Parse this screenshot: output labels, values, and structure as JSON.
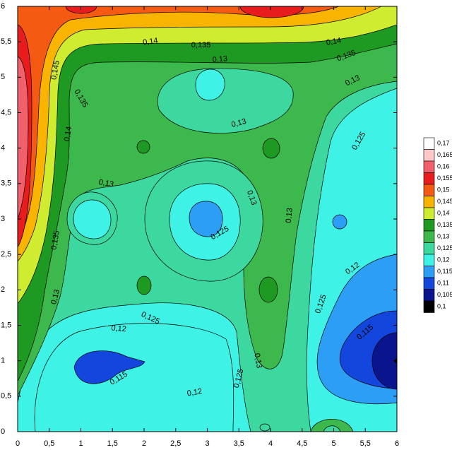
{
  "chart_data": {
    "type": "contour",
    "xlim": [
      0,
      6
    ],
    "ylim": [
      0,
      6
    ],
    "xticks": [
      0,
      {
        "value": 0.5,
        "label": "0,5"
      },
      1,
      {
        "value": 1.5,
        "label": "1,5"
      },
      2,
      {
        "value": 2.5,
        "label": "2,5"
      },
      3,
      {
        "value": 3.5,
        "label": "3,5"
      },
      4,
      {
        "value": 4.5,
        "label": "4,5"
      },
      5,
      {
        "value": 5.5,
        "label": "5,5"
      },
      6
    ],
    "yticks": [
      0,
      {
        "value": 0.5,
        "label": "0,5"
      },
      1,
      {
        "value": 1.5,
        "label": "1,5"
      },
      2,
      {
        "value": 2.5,
        "label": "2,5"
      },
      3,
      {
        "value": 3.5,
        "label": "3,5"
      },
      4,
      {
        "value": 4.5,
        "label": "4,5"
      },
      5,
      {
        "value": 5.5,
        "label": "5,5"
      },
      6
    ],
    "levels": [
      {
        "value": 0.17,
        "label": "0,17",
        "color": "#ffffff"
      },
      {
        "value": 0.165,
        "label": "0,165",
        "color": "#ffc8c8"
      },
      {
        "value": 0.16,
        "label": "0,16",
        "color": "#f2606c"
      },
      {
        "value": 0.155,
        "label": "0,155",
        "color": "#e81c1c"
      },
      {
        "value": 0.15,
        "label": "0,15",
        "color": "#f55a12"
      },
      {
        "value": 0.145,
        "label": "0,145",
        "color": "#f8b400"
      },
      {
        "value": 0.14,
        "label": "0,14",
        "color": "#d0ec30"
      },
      {
        "value": 0.135,
        "label": "0,135",
        "color": "#1e9a22"
      },
      {
        "value": 0.13,
        "label": "0,13",
        "color": "#3db84c"
      },
      {
        "value": 0.125,
        "label": "0,125",
        "color": "#3dd8a0"
      },
      {
        "value": 0.12,
        "label": "0,12",
        "color": "#3ef2e6"
      },
      {
        "value": 0.115,
        "label": "0,115",
        "color": "#2c9ef6"
      },
      {
        "value": 0.11,
        "label": "0,11",
        "color": "#1246dc"
      },
      {
        "value": 0.105,
        "label": "0,105",
        "color": "#0a148c"
      },
      {
        "value": 0.1,
        "label": "0,1",
        "color": "#000000"
      }
    ],
    "contour_labels": [
      "0,14",
      "0,135",
      "0,14",
      "0,135",
      "0,145",
      "0,13",
      "0,135",
      "0,13",
      "0,14",
      "0,13",
      "0,125",
      "0,13",
      "0,13",
      "0,13",
      "0,125",
      "0,135",
      "0,12",
      "0,13",
      "0,125",
      "0,125",
      "0,12",
      "0,115",
      "0,13",
      "0,115",
      "0,125",
      "0,12"
    ]
  }
}
